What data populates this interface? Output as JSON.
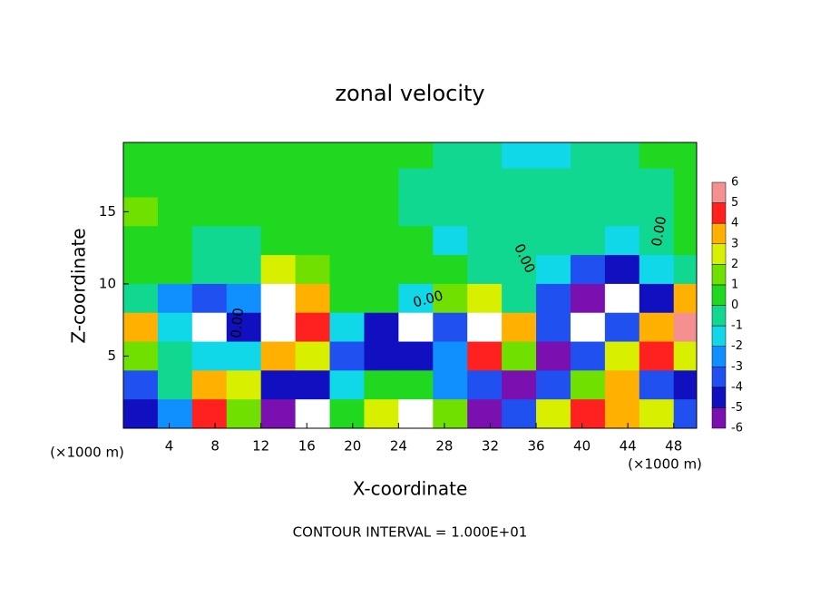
{
  "chart_data": {
    "type": "heatmap",
    "title": "zonal velocity",
    "x_label": "X-coordinate",
    "y_label": "Z-coordinate",
    "axis_unit": "(×1000 m)",
    "footer": "CONTOUR INTERVAL = 1.000E+01",
    "contour_label": "0.00",
    "x": [
      1.5,
      4.5,
      7.5,
      10.5,
      13.5,
      16.5,
      19.5,
      22.5,
      25.5,
      28.5,
      31.5,
      34.5,
      37.5,
      40.5,
      43.5,
      46.5,
      49.5
    ],
    "y": [
      19,
      17,
      15,
      13,
      11,
      9,
      7,
      5,
      3,
      1
    ],
    "values": [
      [
        0.8,
        0.7,
        0.6,
        0.5,
        0.5,
        0.5,
        0.4,
        0.3,
        0.2,
        0,
        -0.5,
        -1.5,
        -1,
        -0.5,
        0,
        0.2,
        0.5
      ],
      [
        1,
        0.8,
        0.6,
        0.5,
        0.5,
        0.4,
        0.3,
        0.2,
        0,
        -0.3,
        -0.5,
        -0.8,
        -0.5,
        -0.3,
        -0.2,
        0,
        0.3
      ],
      [
        1.2,
        1,
        0.8,
        0.7,
        0.6,
        0.5,
        0.4,
        0.3,
        -0.3,
        -0.5,
        -0.5,
        -0.3,
        -0.4,
        -0.5,
        -0.3,
        -0.2,
        0.3
      ],
      [
        0.5,
        0.3,
        0,
        -0.3,
        0.5,
        0.8,
        0.5,
        0.5,
        0.3,
        -1.5,
        -0.2,
        -0.3,
        -0.5,
        -0.8,
        -1,
        -0.3,
        0.2
      ],
      [
        0.5,
        0.3,
        -0.3,
        0,
        3,
        2,
        0.5,
        0.4,
        0.3,
        0.3,
        -0.3,
        -0.5,
        -1.5,
        -3,
        -4,
        -1,
        0
      ],
      [
        0,
        -2,
        -3,
        -2,
        7,
        4,
        0.5,
        0.3,
        -1,
        2,
        3,
        -0.5,
        -3,
        -6,
        -8,
        -4,
        4
      ],
      [
        4,
        -1,
        -8,
        -4,
        7,
        5,
        -1,
        -4,
        -8,
        -3,
        7,
        4,
        -3,
        -7,
        -3,
        4,
        6
      ],
      [
        2,
        -0.5,
        -1,
        -1,
        4,
        3,
        -3,
        -4,
        -4,
        -2,
        5,
        2,
        -5,
        -3,
        3,
        5,
        3
      ],
      [
        -3,
        0,
        4,
        3,
        -4,
        -4,
        -1,
        1,
        0.5,
        -2,
        -3,
        -6,
        -3,
        2,
        4,
        -3,
        -4
      ],
      [
        -4,
        -2,
        5,
        2,
        -6,
        -8,
        0.5,
        3,
        7,
        2,
        -5,
        -3,
        3,
        5,
        4,
        3,
        -3
      ]
    ],
    "xlim": [
      0,
      50
    ],
    "ylim": [
      0,
      19.8
    ],
    "xticks": [
      4,
      8,
      12,
      16,
      20,
      24,
      28,
      32,
      36,
      40,
      44,
      48
    ],
    "yticks": [
      5,
      10,
      15
    ],
    "colorbar": {
      "levels": [
        -6,
        -5,
        -4,
        -3,
        -2,
        -1,
        0,
        1,
        2,
        3,
        4,
        5,
        6
      ],
      "colors": [
        "#7a10b0",
        "#1010c0",
        "#2050f0",
        "#1090ff",
        "#10d8e8",
        "#10d890",
        "#20d820",
        "#70e000",
        "#d8f000",
        "#ffb000",
        "#ff2020",
        "#f49090"
      ],
      "out_of_range_color": "#ffffff"
    }
  }
}
